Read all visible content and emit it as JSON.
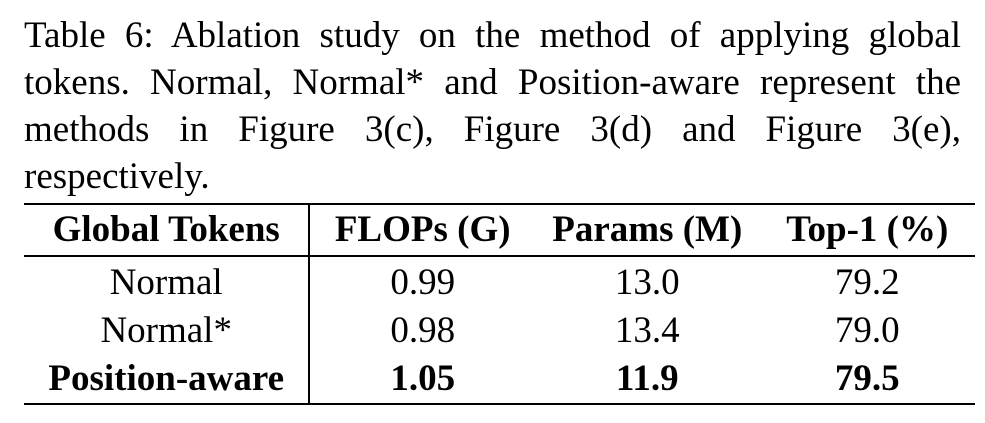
{
  "caption": "Table 6: Ablation study on the method of applying global tokens. Normal, Normal* and Position-aware represent the methods in Figure 3(c), Figure 3(d) and Figure 3(e), respectively.",
  "table": {
    "headers": [
      "Global Tokens",
      "FLOPs (G)",
      "Params (M)",
      "Top-1 (%)"
    ],
    "rows": [
      {
        "method": "Normal",
        "flops": "0.99",
        "params": "13.0",
        "top1": "79.2"
      },
      {
        "method": "Normal*",
        "flops": "0.98",
        "params": "13.4",
        "top1": "79.0"
      },
      {
        "method": "Position-aware",
        "flops": "1.05",
        "params": "11.9",
        "top1": "79.5"
      }
    ]
  }
}
